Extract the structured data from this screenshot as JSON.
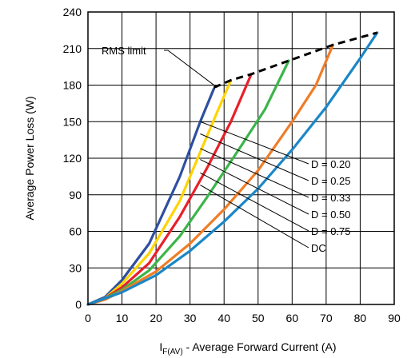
{
  "chart_data": {
    "type": "line",
    "xlabel": {
      "main": "I",
      "sub": "F(AV)",
      "rest": " - Average Forward Current (A)"
    },
    "ylabel": "Average Power Loss (W)",
    "xlim": [
      0,
      90
    ],
    "ylim": [
      0,
      240
    ],
    "xticks": [
      "0",
      "10",
      "20",
      "30",
      "40",
      "50",
      "60",
      "70",
      "80",
      "90"
    ],
    "yticks": [
      "0",
      "30",
      "60",
      "90",
      "120",
      "150",
      "180",
      "210",
      "240"
    ],
    "grid": true,
    "series": [
      {
        "name": "D = 0.20",
        "color": "#2E4FA0",
        "x": [
          0,
          5,
          10,
          18,
          27,
          33,
          37
        ],
        "y": [
          0,
          6,
          20,
          50,
          105,
          150,
          177
        ]
      },
      {
        "name": "D = 0.25",
        "color": "#FFD400",
        "x": [
          0,
          5,
          10,
          18,
          27,
          33,
          38,
          42
        ],
        "y": [
          0,
          5,
          17,
          42,
          85,
          125,
          158,
          184
        ]
      },
      {
        "name": "D = 0.33",
        "color": "#E8202A",
        "x": [
          0,
          5,
          10,
          18,
          27,
          35,
          42,
          48
        ],
        "y": [
          0,
          5,
          14,
          34,
          72,
          112,
          150,
          189
        ]
      },
      {
        "name": "D = 0.50",
        "color": "#3CB54A",
        "x": [
          0,
          5,
          10,
          18,
          27,
          35,
          45,
          52,
          59
        ],
        "y": [
          0,
          5,
          12,
          28,
          56,
          88,
          130,
          160,
          200
        ]
      },
      {
        "name": "D = 0.75",
        "color": "#F07C26",
        "x": [
          0,
          5,
          10,
          20,
          30,
          40,
          50,
          60,
          67,
          72
        ],
        "y": [
          0,
          4,
          11,
          27,
          50,
          78,
          110,
          150,
          180,
          213
        ]
      },
      {
        "name": "DC",
        "color": "#1B87C7",
        "x": [
          0,
          10,
          20,
          30,
          40,
          50,
          60,
          70,
          80,
          85
        ],
        "y": [
          0,
          10,
          24,
          44,
          68,
          95,
          127,
          162,
          202,
          223
        ]
      }
    ],
    "rms_limit": {
      "label": "RMS limit",
      "x": [
        37,
        42,
        48,
        59,
        72,
        85
      ],
      "y": [
        178,
        184,
        189,
        200,
        213,
        223
      ]
    },
    "labels": [
      "D = 0.20",
      "D = 0.25",
      "D = 0.33",
      "D = 0.50",
      "D = 0.75",
      "DC"
    ]
  }
}
